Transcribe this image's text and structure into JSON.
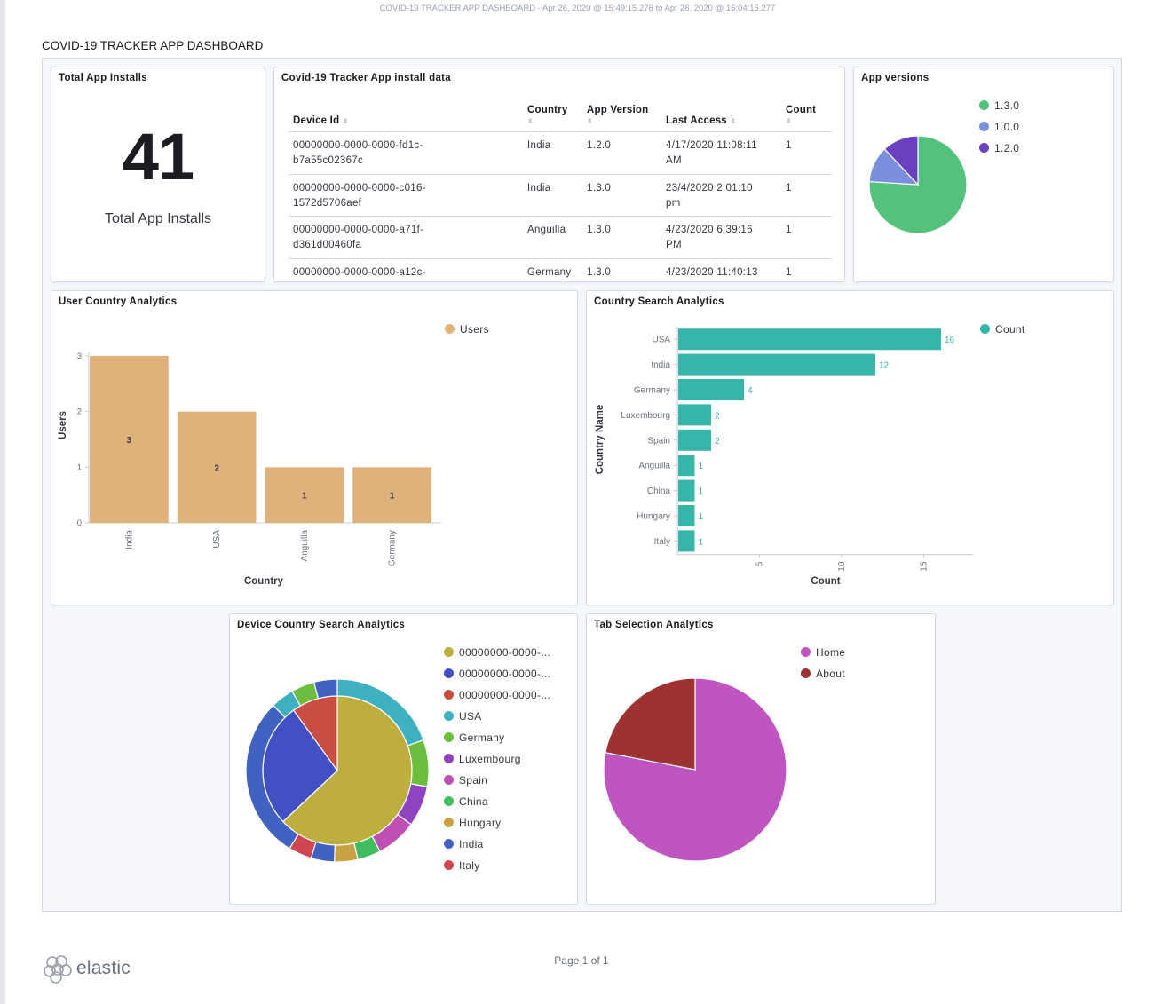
{
  "header": {
    "range": "COVID-19 TRACKER APP DASHBOARD - Apr 26, 2020 @ 15:49:15.276 to Apr 26, 2020 @ 16:04:15.277"
  },
  "dashboard": {
    "title": "COVID-19 TRACKER APP DASHBOARD"
  },
  "metric": {
    "title": "Total App Installs",
    "value": "41",
    "label": "Total App Installs"
  },
  "install_table": {
    "title": "Covid-19 Tracker App install data",
    "columns": [
      "Device Id",
      "Country",
      "App Version",
      "Last Access",
      "Count"
    ],
    "rows": [
      {
        "device_l1": "00000000-0000-0000-fd1c-",
        "device_l2": "b7a55c02367c",
        "country": "India",
        "version": "1.2.0",
        "access_l1": "4/17/2020 11:08:11",
        "access_l2": "AM",
        "count": "1"
      },
      {
        "device_l1": "00000000-0000-0000-c016-",
        "device_l2": "1572d5706aef",
        "country": "India",
        "version": "1.3.0",
        "access_l1": "23/4/2020 2:01:10",
        "access_l2": "pm",
        "count": "1"
      },
      {
        "device_l1": "00000000-0000-0000-a71f-",
        "device_l2": "d361d00460fa",
        "country": "Anguilla",
        "version": "1.3.0",
        "access_l1": "4/23/2020 6:39:16",
        "access_l2": "PM",
        "count": "1"
      },
      {
        "device_l1": "00000000-0000-0000-a12c-",
        "device_l2": "",
        "country": "Germany",
        "version": "1.3.0",
        "access_l1": "4/23/2020 11:40:13",
        "access_l2": "",
        "count": "1"
      }
    ]
  },
  "app_versions": {
    "title": "App versions",
    "legend": [
      {
        "label": "1.3.0",
        "color": "#54c17c"
      },
      {
        "label": "1.0.0",
        "color": "#7b8fdc"
      },
      {
        "label": "1.2.0",
        "color": "#6a3fc0"
      }
    ]
  },
  "user_country": {
    "title": "User Country Analytics",
    "legend": [
      {
        "label": "Users",
        "color": "#e0b27b"
      }
    ]
  },
  "country_search": {
    "title": "Country Search Analytics",
    "legend": [
      {
        "label": "Count",
        "color": "#36b5a9"
      }
    ]
  },
  "device_country": {
    "title": "Device Country Search Analytics",
    "legend": [
      {
        "label": "00000000-0000-...",
        "color": "#bdae3e"
      },
      {
        "label": "00000000-0000-...",
        "color": "#4350c3"
      },
      {
        "label": "00000000-0000-...",
        "color": "#c94d43"
      },
      {
        "label": "USA",
        "color": "#3fb0c2"
      },
      {
        "label": "Germany",
        "color": "#6cbe3e"
      },
      {
        "label": "Luxembourg",
        "color": "#8e44c0"
      },
      {
        "label": "Spain",
        "color": "#c04fb3"
      },
      {
        "label": "China",
        "color": "#3fbd5f"
      },
      {
        "label": "Hungary",
        "color": "#c8a245"
      },
      {
        "label": "India",
        "color": "#4262c2"
      },
      {
        "label": "Italy",
        "color": "#d0464f"
      }
    ]
  },
  "tab_selection": {
    "title": "Tab Selection Analytics",
    "legend": [
      {
        "label": "Home",
        "color": "#bf55c1"
      },
      {
        "label": "About",
        "color": "#9e3230"
      }
    ]
  },
  "chart_data": [
    {
      "type": "pie",
      "title": "App versions",
      "categories": [
        "1.3.0",
        "1.0.0",
        "1.2.0"
      ],
      "values": [
        76,
        12,
        12
      ]
    },
    {
      "type": "bar",
      "title": "User Country Analytics",
      "categories": [
        "India",
        "USA",
        "Anguilla",
        "Germany"
      ],
      "values": [
        3,
        2,
        1,
        1
      ],
      "xlabel": "Country",
      "ylabel": "Users",
      "ylim": [
        0,
        3
      ],
      "yticks": [
        0,
        1,
        2,
        3
      ],
      "series_name": "Users"
    },
    {
      "type": "bar",
      "orientation": "horizontal",
      "title": "Country Search Analytics",
      "categories": [
        "USA",
        "India",
        "Germany",
        "Luxembourg",
        "Spain",
        "Anguilla",
        "China",
        "Hungary",
        "Italy"
      ],
      "values": [
        16,
        12,
        4,
        2,
        2,
        1,
        1,
        1,
        1
      ],
      "xlabel": "Count",
      "ylabel": "Country Name",
      "xlim": [
        0,
        18
      ],
      "xticks": [
        5,
        10,
        15
      ],
      "series_name": "Count"
    },
    {
      "type": "pie",
      "title": "Device Country Search Analytics",
      "inner": {
        "categories": [
          "00000000-0000-... (1)",
          "00000000-0000-... (2)",
          "00000000-0000-... (3)"
        ],
        "values": [
          63,
          27,
          10
        ]
      },
      "outer": {
        "categories": [
          "USA",
          "Germany",
          "Luxembourg",
          "Spain",
          "China",
          "Hungary",
          "India",
          "Italy",
          "India",
          "USA",
          "Germany",
          "India"
        ],
        "values": [
          19,
          8,
          7,
          7,
          4,
          4,
          4,
          4,
          28,
          4,
          4,
          4
        ]
      }
    },
    {
      "type": "pie",
      "title": "Tab Selection Analytics",
      "categories": [
        "Home",
        "About"
      ],
      "values": [
        78,
        22
      ]
    }
  ],
  "footer": {
    "page": "Page 1 of 1",
    "brand": "elastic"
  }
}
